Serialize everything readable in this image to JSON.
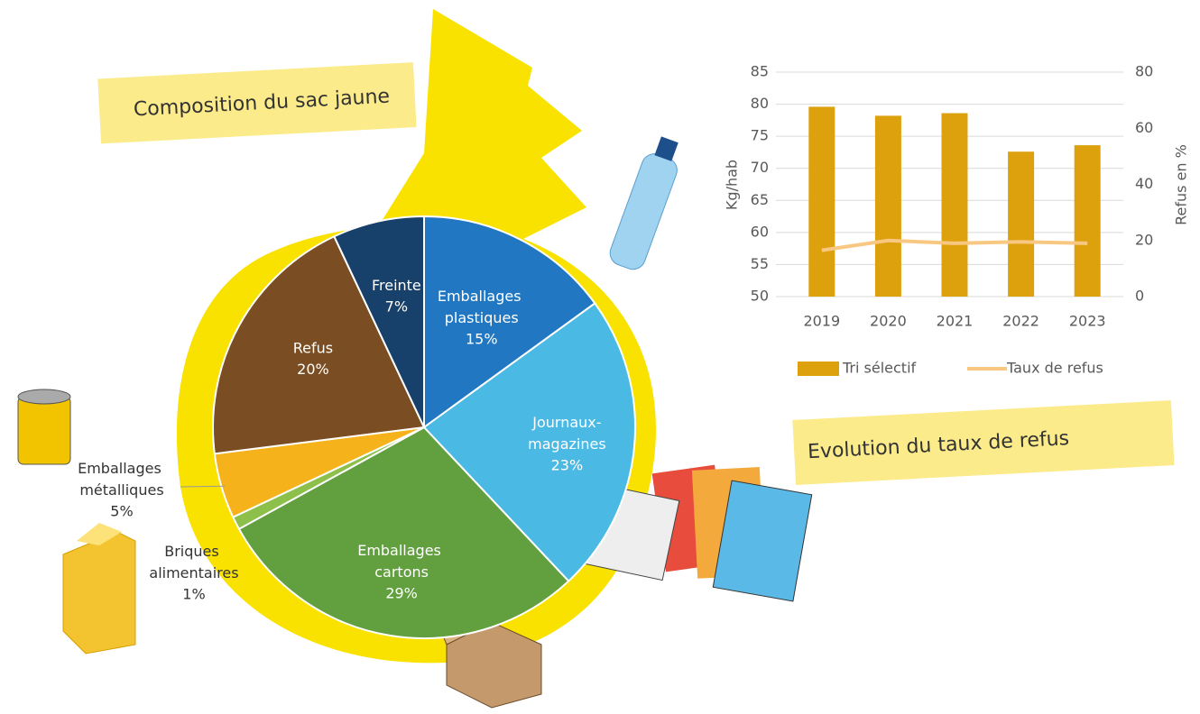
{
  "chart_data": [
    {
      "type": "pie",
      "title": "Composition du sac jaune",
      "categories": [
        "Emballages plastiques",
        "Journaux-magazines",
        "Emballages cartons",
        "Briques alimentaires",
        "Emballages métalliques",
        "Refus",
        "Freinte"
      ],
      "values": [
        15,
        23,
        29,
        1,
        5,
        20,
        7
      ],
      "value_labels": [
        "15%",
        "23%",
        "29%",
        "1%",
        "5%",
        "20%",
        "7%"
      ],
      "colors": [
        "#2177c1",
        "#4ab9e4",
        "#62a03f",
        "#8cc04a",
        "#f5b21a",
        "#7a4e22",
        "#17416b"
      ]
    },
    {
      "type": "bar",
      "title": "Evolution du taux de refus",
      "categories": [
        "2019",
        "2020",
        "2021",
        "2022",
        "2023"
      ],
      "series": [
        {
          "name": "Tri sélectif",
          "color": "#dca10d",
          "values": [
            79.6,
            78.2,
            78.6,
            72.6,
            73.6
          ]
        },
        {
          "name": "Taux de refus",
          "type": "line",
          "axis": "y2",
          "color": "#f8c882",
          "values": [
            16.5,
            20,
            19,
            19.5,
            19
          ]
        }
      ],
      "ylabel": "Kg/hab",
      "y2label": "Refus en %",
      "ylim": [
        50,
        85
      ],
      "yticks": [
        50,
        55,
        60,
        65,
        70,
        75,
        80,
        85
      ],
      "y2lim": [
        0,
        80
      ],
      "y2ticks": [
        0,
        20,
        40,
        60,
        80
      ],
      "grid": true,
      "legend": "bottom"
    }
  ]
}
